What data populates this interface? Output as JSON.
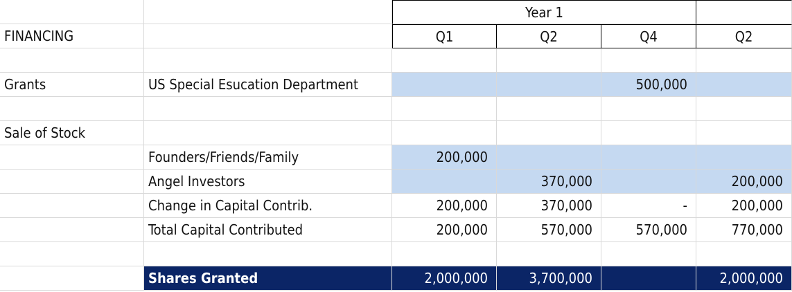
{
  "sheet": {
    "year_label": "Year 1",
    "section_title": "FINANCING",
    "quarters": [
      "Q1",
      "Q2",
      "Q4",
      "Q2"
    ],
    "grants": {
      "label": "Grants",
      "source": "US Special Esucation Department",
      "q4": "500,000"
    },
    "sale_of_stock": {
      "label": "Sale of Stock",
      "founders": {
        "label": "Founders/Friends/Family",
        "values": [
          "200,000",
          "",
          "",
          ""
        ]
      },
      "angel": {
        "label": "Angel Investors",
        "values": [
          "",
          "370,000",
          "",
          "200,000"
        ]
      },
      "change": {
        "label": "Change in Capital Contrib.",
        "values": [
          "200,000",
          "370,000",
          "-",
          "200,000"
        ]
      },
      "total": {
        "label": "Total Capital Contributed",
        "values": [
          "200,000",
          "570,000",
          "570,000",
          "770,000"
        ]
      }
    },
    "shares": {
      "label": "Shares Granted",
      "values": [
        "2,000,000",
        "3,700,000",
        "",
        "2,000,000"
      ]
    },
    "colors": {
      "highlight": "#c5d9f1",
      "navy": "#0b2566"
    }
  }
}
